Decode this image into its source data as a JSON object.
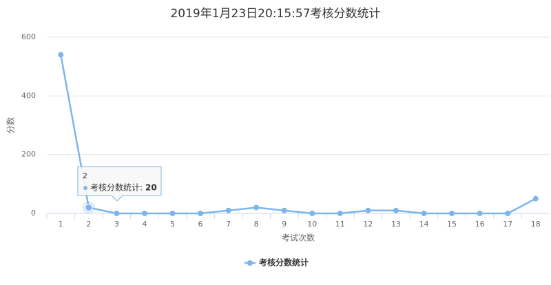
{
  "chart_data": {
    "type": "line",
    "title": "2019年1月23日20:15:57考核分数统计",
    "y_label": "分数",
    "x_label": "考试次数",
    "categories": [
      "1",
      "2",
      "3",
      "4",
      "5",
      "6",
      "7",
      "8",
      "9",
      "10",
      "11",
      "12",
      "13",
      "14",
      "15",
      "16",
      "17",
      "18"
    ],
    "series": [
      {
        "name": "考核分数统计",
        "color": "#7cb5ec",
        "values": [
          540,
          20,
          0,
          0,
          0,
          0,
          10,
          20,
          10,
          0,
          0,
          10,
          10,
          0,
          0,
          0,
          0,
          50
        ]
      }
    ],
    "ylim": [
      0,
      600
    ],
    "yticks": [
      0,
      200,
      400,
      600
    ],
    "grid": true,
    "legend": "bottom",
    "tooltip": {
      "title": "2",
      "label": "考核分数统计:",
      "value": 20
    }
  }
}
